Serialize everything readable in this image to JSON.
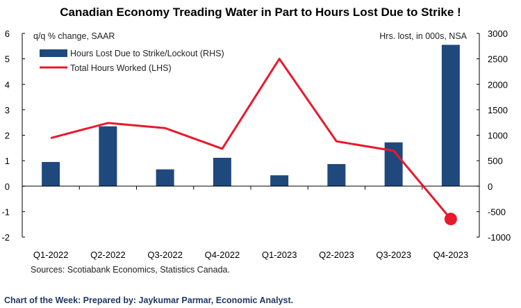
{
  "title": "Canadian Economy Treading Water in Part to Hours Lost Due to Strike !",
  "sources": "Sources: Scotiabank Economics, Statistics Canada.",
  "footer": "Chart of the Week: Prepared by: Jaykumar Parmar, Economic Analyst.",
  "chart_data": {
    "type": "bar+line",
    "title": "Canadian Economy Treading Water in Part to Hours Lost Due to Strike !",
    "categories": [
      "Q1-2022",
      "Q2-2022",
      "Q3-2022",
      "Q4-2022",
      "Q1-2023",
      "Q2-2023",
      "Q3-2023",
      "Q4-2023"
    ],
    "left_axis": {
      "label": "q/q % change, SAAR",
      "range": [
        -2,
        6
      ],
      "ticks": [
        "6",
        "5",
        "4",
        "3",
        "2",
        "1",
        "0",
        "-1",
        "-2"
      ]
    },
    "right_axis": {
      "label": "Hrs. lost, in 000s, NSA",
      "range": [
        -1000,
        3000
      ],
      "ticks": [
        "3000",
        "2500",
        "2000",
        "1500",
        "1000",
        "500",
        "0",
        "-500",
        "-1000"
      ]
    },
    "series": [
      {
        "name": "Hours Lost Due to Strike/Lockout (RHS)",
        "type": "bar",
        "axis": "right",
        "color": "#1f497d",
        "values": [
          475,
          1175,
          330,
          557,
          213,
          434,
          860,
          2775
        ]
      },
      {
        "name": "Total Hours Worked (LHS)",
        "type": "line",
        "axis": "left",
        "color": "#e8192c",
        "values": [
          1.89,
          2.48,
          2.28,
          1.47,
          5.0,
          1.76,
          1.39,
          -1.29
        ],
        "highlight_last_point": true
      }
    ],
    "legend": "top-left",
    "grid": false
  }
}
